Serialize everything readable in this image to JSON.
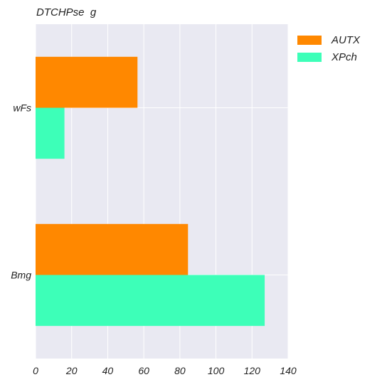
{
  "chart_data": {
    "type": "bar",
    "orientation": "horizontal",
    "title": "DTCHPse  g",
    "categories": [
      "wFs",
      "Bmg"
    ],
    "series": [
      {
        "name": "AUTX",
        "color": "#FF8800",
        "values": [
          56.5,
          84.5
        ]
      },
      {
        "name": "XPch",
        "color": "#3DFFB8",
        "values": [
          16,
          127
        ]
      }
    ],
    "xlim": [
      0,
      140
    ],
    "xticks": [
      0,
      20,
      40,
      60,
      80,
      100,
      120,
      140
    ],
    "xlabel": "",
    "ylabel": "",
    "grid": true,
    "legend_position": "top-right-outside"
  }
}
